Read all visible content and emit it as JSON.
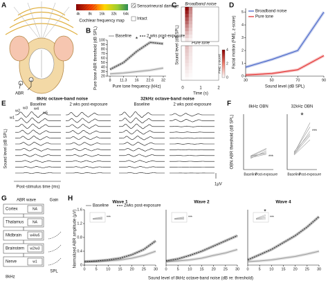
{
  "panel_letters": [
    "A",
    "B",
    "C",
    "D",
    "E",
    "F",
    "G",
    "H"
  ],
  "A": {
    "label": "ABR"
  },
  "freq_map": {
    "ticks": [
      "4k",
      "8k",
      "16k",
      "32k",
      "64k"
    ],
    "label": "Cochlear frequency map",
    "legend": [
      "Sensorineural damage",
      "Intact"
    ]
  },
  "C": {
    "titles": [
      "Broadband noise",
      "Pure tone"
    ],
    "ylabel": "Sound level (dB SPL)",
    "xlabel": "Time (s)",
    "xticks": [
      "0",
      "1",
      "2"
    ],
    "colorbar_label": "FME z-score",
    "colorbar_ticks": [
      "0",
      "2",
      "4"
    ]
  },
  "E": {
    "titles": [
      "8kHz octave-band noise",
      "32kHz octave-band noise"
    ],
    "conditions": [
      "Baseline",
      "2 wks post-exposure"
    ],
    "waves": [
      "w1",
      "w2",
      "w3",
      "w4",
      "w5"
    ],
    "ylabel": "Sound level (dB SPL)",
    "xlabel": "Post-stimulus time (ms)",
    "scale": "1µV"
  },
  "G": {
    "headers": [
      "ABR wave",
      "Gain"
    ],
    "levels": [
      {
        "region": "Cortex",
        "wave": "NA"
      },
      {
        "region": "Thalamus",
        "wave": "NA"
      },
      {
        "region": "Midbrain",
        "wave": "w4/w5"
      },
      {
        "region": "Brainstem",
        "wave": "w2/w3"
      },
      {
        "region": "Nerve",
        "wave": "w1"
      }
    ],
    "stimulus": "8kHz",
    "axis": "SPL"
  },
  "H_labels": {
    "ylabel": "Normalized ABR amplitude (µV)",
    "xlabel": "Sound level of 8kHz octave-band noise (dB re: threshold)"
  },
  "chart_data": [
    {
      "type": "line",
      "categories": [
        "8",
        "11.3",
        "16",
        "22.6",
        "32"
      ],
      "series": [
        {
          "name": "Baseline",
          "color": "#9a9a9a",
          "values": [
            25,
            27,
            30,
            33,
            38
          ]
        },
        {
          "name": "2 wks post-exposure",
          "color": "#222222",
          "dash": true,
          "values": [
            35,
            50,
            75,
            95,
            92
          ]
        }
      ],
      "significance": [
        null,
        null,
        "*",
        "*",
        "*"
      ],
      "ylim": [
        20,
        100
      ],
      "yticks": [
        20,
        30,
        40,
        50,
        60,
        70,
        80,
        90,
        100
      ],
      "ylabel": "Pure tone ABR threshold (dB SPL)",
      "xlabel": "Pure tone frequency (kHz)"
    },
    {
      "type": "line",
      "x": [
        30,
        50,
        70,
        90
      ],
      "xlim": [
        30,
        90
      ],
      "xticks": [
        30,
        50,
        70,
        90
      ],
      "series": [
        {
          "name": "Broadband noise",
          "color": "#3b5bc4",
          "values": [
            0.7,
            1.3,
            2.0,
            5.0
          ]
        },
        {
          "name": "Pure tone",
          "color": "#e02424",
          "values": [
            0.1,
            0.2,
            0.5,
            1.6
          ]
        }
      ],
      "ylim": [
        0,
        5.3
      ],
      "yticks": [
        0,
        1,
        2,
        3,
        4,
        5
      ],
      "ylabel": "Facial motion (FME, z-score)",
      "xlabel": "Sound level (dB SPL)"
    },
    {
      "type": "paired",
      "title": "8kHz OBN",
      "categories": [
        "Baseline",
        "Post-exposure"
      ],
      "values": [
        [
          35,
          34,
          36,
          33,
          35,
          36
        ],
        [
          40,
          38,
          45,
          42,
          44,
          39
        ]
      ],
      "significance": "***",
      "ylim": [
        20,
        85
      ],
      "ylabel": "OBN ABR threshold (dB SPL)"
    },
    {
      "type": "paired",
      "title": "32kHz OBN",
      "categories": [
        "Baseline",
        "Post-exposure"
      ],
      "values": [
        [
          38,
          40,
          37,
          39,
          38,
          41
        ],
        [
          60,
          70,
          55,
          75,
          65,
          62
        ]
      ],
      "significance": "***",
      "star": "*",
      "ylim": [
        20,
        85
      ]
    },
    {
      "type": "line",
      "title": "Wave 1",
      "x": [
        0,
        5,
        10,
        15,
        20,
        25,
        30
      ],
      "xlim": [
        0,
        30
      ],
      "xticks": [
        0,
        5,
        10,
        15,
        20,
        25,
        30
      ],
      "ylim": [
        0,
        1.6
      ],
      "yticks": [
        0,
        0.4,
        0.8,
        1.2,
        1.6
      ],
      "significance": "***",
      "series": [
        {
          "name": "Baseline",
          "color": "#9a9a9a",
          "values": [
            0.1,
            0.1,
            0.12,
            0.15,
            0.2,
            0.28,
            0.4
          ]
        },
        {
          "name": "2wks post-exposure",
          "color": "#222222",
          "dash": true,
          "values": [
            0.1,
            0.12,
            0.15,
            0.2,
            0.3,
            0.45,
            0.7
          ]
        }
      ]
    },
    {
      "type": "line",
      "title": "Wave 2",
      "x": [
        0,
        5,
        10,
        15,
        20,
        25,
        30
      ],
      "xlim": [
        0,
        30
      ],
      "xticks": [
        0,
        5,
        10,
        15,
        20,
        25,
        30
      ],
      "ylim": [
        0,
        1.6
      ],
      "significance": "***",
      "series": [
        {
          "color": "#9a9a9a",
          "values": [
            0.1,
            0.12,
            0.15,
            0.2,
            0.28,
            0.35,
            0.45
          ]
        },
        {
          "color": "#222222",
          "dash": true,
          "values": [
            0.12,
            0.18,
            0.28,
            0.4,
            0.55,
            0.7,
            0.85
          ]
        }
      ]
    },
    {
      "type": "line",
      "title": "Wave 4",
      "x": [
        0,
        5,
        10,
        15,
        20,
        25,
        30
      ],
      "xlim": [
        0,
        30
      ],
      "xticks": [
        0,
        5,
        10,
        15,
        20,
        25,
        30
      ],
      "ylim": [
        0,
        1.6
      ],
      "significance": "***",
      "star": "*",
      "series": [
        {
          "color": "#9a9a9a",
          "values": [
            0.1,
            0.12,
            0.15,
            0.2,
            0.25,
            0.32,
            0.4
          ]
        },
        {
          "color": "#222222",
          "dash": true,
          "values": [
            0.15,
            0.3,
            0.45,
            0.65,
            0.85,
            1.1,
            1.4
          ]
        }
      ]
    }
  ]
}
